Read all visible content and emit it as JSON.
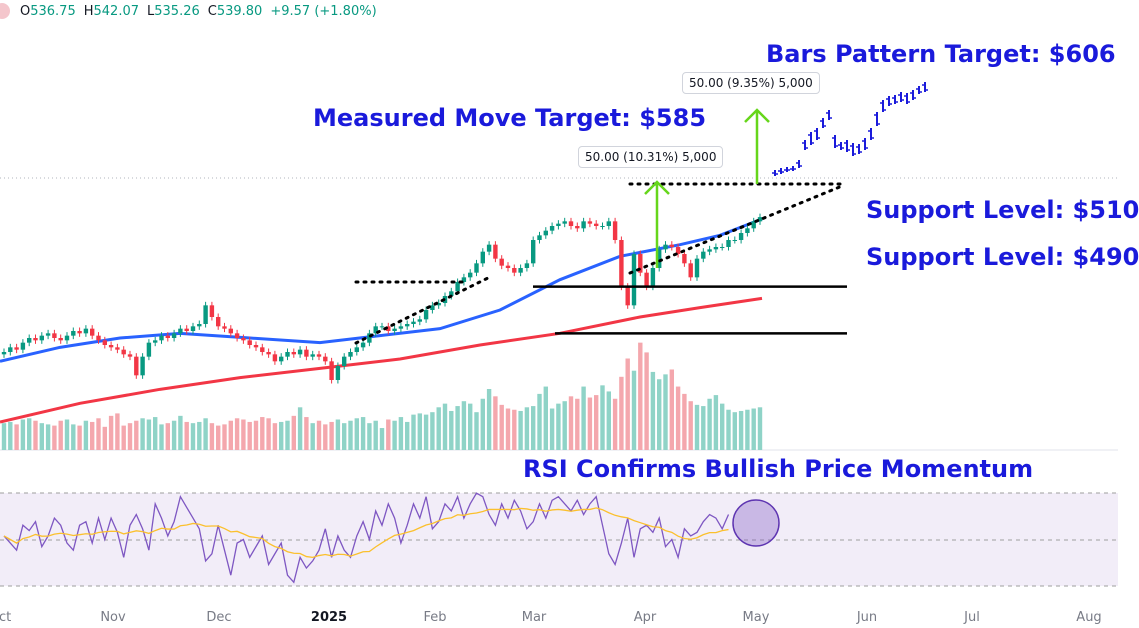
{
  "ohlc": {
    "open_label": "O",
    "open": "536.75",
    "high_label": "H",
    "high": "542.07",
    "low_label": "L",
    "low": "535.26",
    "close_label": "C",
    "close": "539.80",
    "change": "+9.57 (+1.80%)"
  },
  "annotations": {
    "bars_target": "Bars Pattern Target: $606",
    "measured_target": "Measured Move Target: $585",
    "support_1": "Support Level: $510",
    "support_2": "Support Level: $490",
    "rsi_title": "RSI Confirms Bullish Price Momentum",
    "measure_box_1": "50.00 (10.31%) 5,000",
    "measure_box_2": "50.00 (9.35%) 5,000"
  },
  "colors": {
    "up": "#089981",
    "down": "#f23645",
    "up_volume": "#8fd3c7",
    "down_volume": "#f4a7ad",
    "ma50": "#2962ff",
    "ma200": "#f23645",
    "rsi_line": "#7e57c2",
    "rsi_ma": "#fbc02d",
    "rsi_band": "#ede7f6",
    "annotation": "#1a1adb",
    "measure_arrow": "#66d61b",
    "projection": "#1a1adb"
  },
  "chart_data": {
    "type": "candlestick",
    "x_axis": {
      "tick_labels": [
        "Oct",
        "Nov",
        "Dec",
        "2025",
        "Feb",
        "Mar",
        "Apr",
        "May",
        "Jun",
        "Jul",
        "Aug"
      ]
    },
    "y_range": [
      440,
      620
    ],
    "closes": [
      482,
      484,
      483,
      486,
      488,
      487,
      489,
      490,
      488,
      487,
      489,
      491,
      490,
      492,
      489,
      487,
      485,
      484,
      483,
      481,
      480,
      472,
      480,
      486,
      487,
      489,
      488,
      490,
      492,
      491,
      493,
      494,
      502,
      497,
      493,
      492,
      490,
      488,
      487,
      485,
      484,
      482,
      481,
      478,
      480,
      482,
      481,
      483,
      480,
      481,
      480,
      478,
      470,
      476,
      480,
      482,
      484,
      486,
      490,
      493,
      493,
      491,
      492,
      493,
      494,
      495,
      496,
      500,
      502,
      503,
      506,
      508,
      512,
      514,
      516,
      520,
      525,
      528,
      522,
      519,
      518,
      516,
      518,
      520,
      530,
      532,
      534,
      536,
      537,
      538,
      536,
      535,
      538,
      537,
      536,
      536,
      538,
      530,
      510,
      502,
      524,
      516,
      510,
      518,
      526,
      528,
      527,
      524,
      520,
      514,
      522,
      525,
      526,
      527,
      527,
      530,
      530,
      533,
      535,
      538,
      539.8
    ],
    "volume": [
      22,
      23,
      21,
      25,
      26,
      24,
      22,
      21,
      20,
      24,
      25,
      21,
      20,
      24,
      23,
      26,
      19,
      28,
      30,
      20,
      22,
      24,
      26,
      25,
      27,
      21,
      22,
      24,
      28,
      23,
      22,
      23,
      26,
      22,
      20,
      21,
      24,
      26,
      25,
      23,
      24,
      27,
      26,
      22,
      23,
      24,
      28,
      35,
      27,
      22,
      24,
      21,
      23,
      25,
      22,
      24,
      26,
      27,
      22,
      24,
      18,
      25,
      24,
      27,
      23,
      29,
      30,
      29,
      31,
      35,
      38,
      32,
      36,
      40,
      38,
      31,
      42,
      50,
      44,
      37,
      34,
      33,
      32,
      35,
      36,
      46,
      52,
      34,
      38,
      40,
      44,
      42,
      52,
      43,
      45,
      53,
      48,
      42,
      60,
      75,
      65,
      88,
      80,
      64,
      58,
      62,
      66,
      52,
      46,
      40,
      37,
      36,
      42,
      45,
      38,
      33,
      31,
      32,
      33,
      34,
      35
    ],
    "ma50": [
      [
        0,
        478
      ],
      [
        60,
        484
      ],
      [
        120,
        488
      ],
      [
        180,
        490
      ],
      [
        250,
        488
      ],
      [
        320,
        486
      ],
      [
        380,
        489
      ],
      [
        440,
        492
      ],
      [
        500,
        500
      ],
      [
        560,
        513
      ],
      [
        620,
        523
      ],
      [
        680,
        528
      ],
      [
        720,
        532
      ],
      [
        762,
        539
      ]
    ],
    "ma200": [
      [
        0,
        452
      ],
      [
        80,
        460
      ],
      [
        160,
        466
      ],
      [
        240,
        471
      ],
      [
        320,
        475
      ],
      [
        400,
        479
      ],
      [
        480,
        485
      ],
      [
        560,
        490
      ],
      [
        640,
        497
      ],
      [
        700,
        501
      ],
      [
        762,
        505
      ]
    ],
    "projection": "bars pattern projection toward $606",
    "support_levels": [
      510,
      490
    ],
    "measured_moves": [
      {
        "label": "50.00 (10.31%) 5,000"
      },
      {
        "label": "50.00 (9.35%) 5,000"
      }
    ],
    "rsi": {
      "range": [
        20,
        80
      ],
      "levels": [
        70,
        50,
        30
      ],
      "values": [
        52,
        48,
        44,
        58,
        55,
        60,
        46,
        52,
        62,
        58,
        48,
        44,
        58,
        60,
        48,
        62,
        50,
        62,
        54,
        40,
        58,
        64,
        56,
        44,
        70,
        62,
        52,
        60,
        74,
        68,
        62,
        56,
        38,
        42,
        58,
        44,
        30,
        48,
        50,
        40,
        46,
        52,
        36,
        42,
        48,
        30,
        26,
        40,
        34,
        38,
        44,
        56,
        40,
        52,
        44,
        40,
        52,
        60,
        50,
        66,
        58,
        70,
        62,
        48,
        58,
        70,
        62,
        74,
        56,
        60,
        70,
        66,
        74,
        62,
        70,
        76,
        74,
        64,
        58,
        70,
        62,
        72,
        66,
        56,
        60,
        70,
        62,
        72,
        74,
        70,
        66,
        72,
        64,
        70,
        74,
        58,
        42,
        36,
        48,
        62,
        40,
        56,
        58,
        54,
        62,
        46,
        50,
        40,
        56,
        52,
        54,
        60,
        64,
        62,
        56,
        64
      ]
    }
  }
}
